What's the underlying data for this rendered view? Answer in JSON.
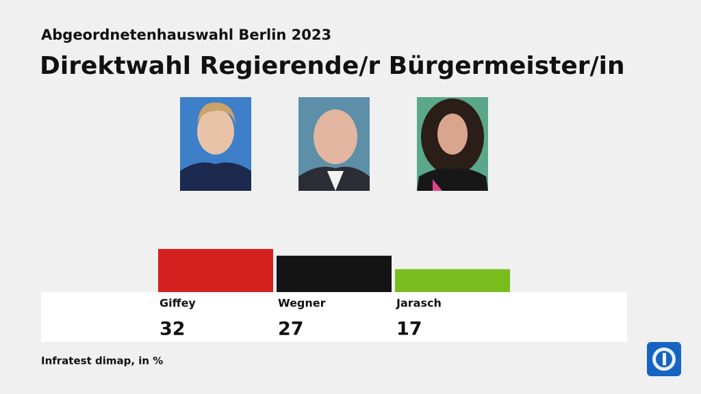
{
  "chart_data": {
    "type": "bar",
    "subtitle": "Abgeordnetenhauswahl Berlin 2023",
    "title": "Direktwahl Regierende/r Bürgermeister/in",
    "categories": [
      "Giffey",
      "Wegner",
      "Jarasch"
    ],
    "values": [
      32,
      27,
      17
    ],
    "colors": [
      "#d52020",
      "#141414",
      "#78bc1e"
    ],
    "source": "Infratest dimap, in %"
  }
}
